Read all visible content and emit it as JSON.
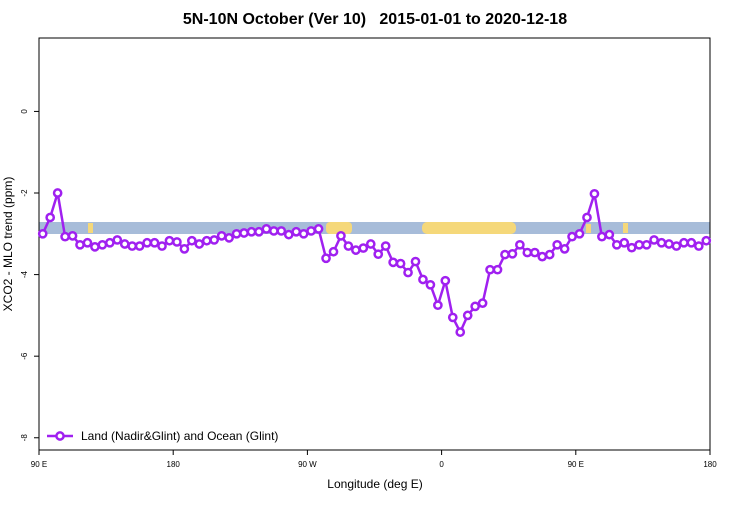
{
  "chart_data": {
    "type": "line",
    "title": "5N-10N October (Ver 10)   2015-01-01 to 2020-12-18",
    "xlabel": "Longitude (deg E)",
    "ylabel": "XCO2 - MLO trend (ppm)",
    "xlim": [
      90,
      540
    ],
    "ylim": [
      -8.3,
      1.8
    ],
    "xticks": [
      {
        "value": 90,
        "label": "90 E"
      },
      {
        "value": 180,
        "label": "180"
      },
      {
        "value": 270,
        "label": "90 W"
      },
      {
        "value": 360,
        "label": "0"
      },
      {
        "value": 450,
        "label": "90 E"
      },
      {
        "value": 540,
        "label": "180"
      }
    ],
    "yticks": [
      0,
      -2,
      -4,
      -6,
      -8
    ],
    "legend": "bottomleft",
    "x": [
      92.5,
      97.5,
      102.5,
      107.5,
      112.5,
      117.5,
      122.5,
      127.5,
      132.5,
      137.5,
      142.5,
      147.5,
      152.5,
      157.5,
      162.5,
      167.5,
      172.5,
      177.5,
      182.5,
      187.5,
      192.5,
      197.5,
      202.5,
      207.5,
      212.5,
      217.5,
      222.5,
      227.5,
      232.5,
      237.5,
      242.5,
      247.5,
      252.5,
      257.5,
      262.5,
      267.5,
      272.5,
      277.5,
      282.5,
      287.5,
      292.5,
      297.5,
      302.5,
      307.5,
      312.5,
      317.5,
      322.5,
      327.5,
      332.5,
      337.5,
      342.5,
      347.5,
      352.5,
      357.5,
      362.5,
      367.5,
      372.5,
      377.5,
      382.5,
      387.5,
      392.5,
      397.5,
      402.5,
      407.5,
      412.5,
      417.5,
      422.5,
      427.5,
      432.5,
      437.5,
      442.5,
      447.5,
      452.5,
      457.5,
      462.5,
      467.5,
      472.5,
      477.5,
      482.5,
      487.5,
      492.5,
      497.5,
      502.5,
      507.5,
      512.5,
      517.5,
      522.5,
      527.5,
      532.5,
      537.5
    ],
    "series": [
      {
        "name": "Land (Nadir&Glint) and Ocean (Glint)",
        "color": "#a020f0",
        "values": [
          -3.0,
          -2.6,
          -2.0,
          -3.07,
          -3.05,
          -3.27,
          -3.22,
          -3.32,
          -3.27,
          -3.22,
          -3.15,
          -3.25,
          -3.3,
          -3.3,
          -3.22,
          -3.22,
          -3.3,
          -3.17,
          -3.2,
          -3.37,
          -3.17,
          -3.25,
          -3.17,
          -3.15,
          -3.05,
          -3.1,
          -3.0,
          -2.98,
          -2.95,
          -2.95,
          -2.88,
          -2.93,
          -2.93,
          -3.02,
          -2.95,
          -3.0,
          -2.93,
          -2.88,
          -3.6,
          -3.44,
          -3.05,
          -3.3,
          -3.4,
          -3.35,
          -3.25,
          -3.5,
          -3.3,
          -3.7,
          -3.73,
          -3.95,
          -3.68,
          -4.12,
          -4.25,
          -4.75,
          -4.15,
          -5.05,
          -5.41,
          -5.0,
          -4.78,
          -4.7,
          -3.88,
          -3.88,
          -3.51,
          -3.49,
          -3.27,
          -3.46,
          -3.46,
          -3.56,
          -3.51,
          -3.27,
          -3.37,
          -3.07,
          -3.0,
          -2.6,
          -2.02,
          -3.07,
          -3.02,
          -3.27,
          -3.22,
          -3.34,
          -3.27,
          -3.27,
          -3.15,
          -3.22,
          -3.25,
          -3.3,
          -3.22,
          -3.22,
          -3.3,
          -3.17
        ]
      }
    ]
  }
}
